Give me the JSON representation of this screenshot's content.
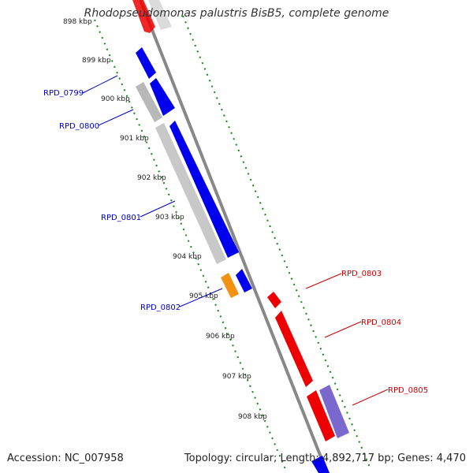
{
  "title": "Rhodopseudomonas palustris BisB5, complete genome",
  "footer": {
    "accession": "Accession: NC_007958",
    "summary": "Topology: circular; Length: 4,892,717 bp; Genes: 4,470"
  },
  "colors": {
    "forward_gene": "#0000ee",
    "reverse_gene": "#ee0000",
    "orf_gray": "#bbbbbb",
    "orange_feature": "#f39212",
    "purple_feature": "#7b68ce",
    "tick_green": "#118811",
    "backbone": "#888888"
  },
  "kbp_labels": [
    "898 kbp",
    "899 kbp",
    "900 kbp",
    "901 kbp",
    "902 kbp",
    "903 kbp",
    "904 kbp",
    "905 kbp",
    "906 kbp",
    "907 kbp",
    "908 kbp"
  ],
  "genes_left": [
    "RPD_0799",
    "RPD_0800",
    "RPD_0801",
    "RPD_0802"
  ],
  "genes_right": [
    "RPD_0803",
    "RPD_0804",
    "RPD_0805"
  ]
}
